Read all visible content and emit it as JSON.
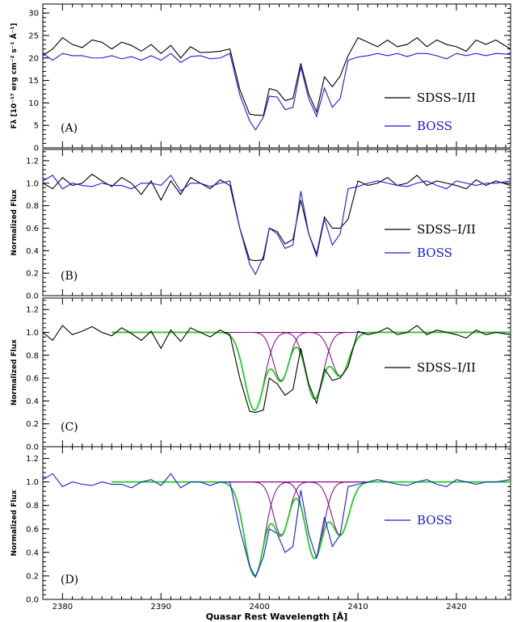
{
  "chart_data": [
    {
      "panel_label": "(A)",
      "type": "line",
      "ylabel": "Fλ [10⁻¹⁷ erg cm⁻² s⁻¹ Å⁻¹]",
      "ylim": [
        0,
        32
      ],
      "yticks": [
        0,
        5,
        10,
        15,
        20,
        25,
        30
      ],
      "ytick_labels": [
        "0",
        "5",
        "10",
        "15",
        "20",
        "25",
        "30"
      ],
      "xlim": [
        2378,
        2425.5
      ],
      "legend": [
        "SDSS–I/II",
        "BOSS"
      ],
      "colors": {
        "SDSS–I/II": "#000000",
        "BOSS": "#1a1adc"
      },
      "series": [
        {
          "name": "SDSS–I/II",
          "x": [
            2378,
            2379,
            2380,
            2381,
            2382,
            2383,
            2384,
            2385,
            2386,
            2387,
            2388,
            2389,
            2390,
            2391,
            2392,
            2393,
            2394,
            2395,
            2396,
            2397,
            2398,
            2399,
            2399.6,
            2400.4,
            2401,
            2401.8,
            2402.6,
            2403.4,
            2404.2,
            2405,
            2405.8,
            2406.6,
            2407.4,
            2408.2,
            2409,
            2410,
            2411,
            2412,
            2413,
            2414,
            2415,
            2416,
            2417,
            2418,
            2419,
            2420,
            2421,
            2422,
            2423,
            2424,
            2425.5
          ],
          "values": [
            20.5,
            22,
            24.5,
            23,
            22.3,
            24,
            23.5,
            22,
            23.5,
            22.8,
            21.5,
            23,
            21,
            22.8,
            20,
            22.5,
            21.2,
            21.3,
            21.5,
            22,
            13,
            7.5,
            7.3,
            7.2,
            13.2,
            12.7,
            10.5,
            11,
            18.8,
            12,
            8,
            15.8,
            13.6,
            16,
            20.5,
            24.5,
            23.5,
            22.5,
            24,
            22.5,
            23,
            24.5,
            22.5,
            24,
            23,
            22.5,
            21.5,
            24,
            23,
            24,
            22
          ]
        },
        {
          "name": "BOSS",
          "x": [
            2378,
            2379,
            2380,
            2381,
            2382,
            2383,
            2384,
            2385,
            2386,
            2387,
            2388,
            2389,
            2390,
            2391,
            2392,
            2393,
            2394,
            2395,
            2396,
            2397,
            2398,
            2399,
            2399.6,
            2400.4,
            2401,
            2401.8,
            2402.6,
            2403.4,
            2404.2,
            2405,
            2405.8,
            2406.6,
            2407.4,
            2408.2,
            2409,
            2410,
            2411,
            2412,
            2413,
            2414,
            2415,
            2416,
            2417,
            2418,
            2419,
            2420,
            2421,
            2422,
            2423,
            2424,
            2425.5
          ],
          "values": [
            21,
            19.5,
            21,
            20.5,
            20.5,
            20,
            20,
            20.5,
            19.8,
            20.3,
            19.5,
            20.5,
            19.5,
            21,
            19,
            20.3,
            20.5,
            19.8,
            20,
            21,
            11.8,
            6,
            4,
            6.8,
            11.5,
            11.3,
            8.5,
            9,
            18,
            11,
            7,
            13.3,
            9,
            11,
            19.5,
            20.2,
            20.5,
            21,
            20.5,
            21,
            20.3,
            21,
            21,
            20.5,
            19.8,
            21,
            20.5,
            21,
            20.5,
            21,
            20.8
          ]
        }
      ]
    },
    {
      "panel_label": "(B)",
      "type": "line",
      "ylabel": "Normalized Flux",
      "ylim": [
        0,
        1.3
      ],
      "yticks": [
        0,
        0.2,
        0.4,
        0.6,
        0.8,
        1.0,
        1.2
      ],
      "ytick_labels": [
        "0.0",
        "0.2",
        "0.4",
        "0.6",
        "0.8",
        "1.0",
        "1.2"
      ],
      "xlim": [
        2378,
        2425.5
      ],
      "legend": [
        "SDSS–I/II",
        "BOSS"
      ],
      "colors": {
        "SDSS–I/II": "#000000",
        "BOSS": "#1a1adc"
      },
      "series": [
        {
          "name": "SDSS–I/II",
          "x": [
            2378,
            2379,
            2380,
            2381,
            2382,
            2383,
            2384,
            2385,
            2386,
            2387,
            2388,
            2389,
            2390,
            2391,
            2392,
            2393,
            2394,
            2395,
            2396,
            2397,
            2398,
            2399,
            2399.6,
            2400.4,
            2401,
            2401.8,
            2402.6,
            2403.4,
            2404.2,
            2405,
            2405.8,
            2406.6,
            2407.4,
            2408.2,
            2409,
            2410,
            2411,
            2412,
            2413,
            2414,
            2415,
            2416,
            2417,
            2418,
            2419,
            2420,
            2421,
            2422,
            2423,
            2424,
            2425.5
          ],
          "values": [
            1.0,
            0.95,
            1.05,
            0.98,
            1.0,
            1.08,
            1.02,
            0.97,
            1.05,
            1.0,
            0.9,
            1.02,
            0.85,
            1.02,
            0.9,
            1.05,
            1.0,
            0.95,
            1.03,
            0.98,
            0.6,
            0.32,
            0.31,
            0.32,
            0.6,
            0.57,
            0.46,
            0.5,
            0.85,
            0.55,
            0.37,
            0.7,
            0.6,
            0.6,
            0.68,
            1.02,
            0.98,
            1.0,
            1.05,
            0.98,
            1.0,
            1.07,
            0.98,
            1.02,
            1.0,
            0.98,
            0.95,
            1.03,
            0.98,
            1.02,
            0.98
          ]
        },
        {
          "name": "BOSS",
          "x": [
            2378,
            2379,
            2380,
            2381,
            2382,
            2383,
            2384,
            2385,
            2386,
            2387,
            2388,
            2389,
            2390,
            2391,
            2392,
            2393,
            2394,
            2395,
            2396,
            2397,
            2398,
            2399,
            2399.6,
            2400.4,
            2401,
            2401.8,
            2402.6,
            2403.4,
            2404.2,
            2405,
            2405.8,
            2406.6,
            2407.4,
            2408.2,
            2409,
            2410,
            2411,
            2412,
            2413,
            2414,
            2415,
            2416,
            2417,
            2418,
            2419,
            2420,
            2421,
            2422,
            2423,
            2424,
            2425.5
          ],
          "values": [
            1.02,
            1.07,
            0.95,
            1.0,
            0.98,
            0.97,
            1.0,
            0.98,
            0.98,
            0.95,
            1.0,
            1.0,
            0.98,
            1.07,
            0.93,
            1.0,
            1.0,
            0.97,
            1.0,
            1.02,
            0.6,
            0.28,
            0.19,
            0.35,
            0.6,
            0.55,
            0.42,
            0.45,
            0.93,
            0.55,
            0.35,
            0.68,
            0.45,
            0.55,
            0.95,
            0.97,
            1.0,
            1.02,
            1.0,
            0.98,
            0.97,
            1.0,
            1.02,
            0.98,
            0.95,
            1.02,
            1.0,
            0.98,
            1.0,
            1.0,
            1.02
          ]
        }
      ]
    },
    {
      "panel_label": "(C)",
      "type": "line",
      "ylabel": "Normalized Flux",
      "ylim": [
        0,
        1.3
      ],
      "yticks": [
        0,
        0.2,
        0.4,
        0.6,
        0.8,
        1.0,
        1.2
      ],
      "ytick_labels": [
        "0.0",
        "0.2",
        "0.4",
        "0.6",
        "0.8",
        "1.0",
        "1.2"
      ],
      "xlim": [
        2378,
        2425.5
      ],
      "legend": [
        "SDSS–I/II"
      ],
      "colors": {
        "SDSS–I/II": "#000000",
        "fit": "#22cc22",
        "components": "#800080"
      },
      "series": [
        {
          "name": "SDSS–I/II",
          "x": [
            2378,
            2379,
            2380,
            2381,
            2382,
            2383,
            2384,
            2385,
            2386,
            2387,
            2388,
            2389,
            2390,
            2391,
            2392,
            2393,
            2394,
            2395,
            2396,
            2397,
            2398,
            2399,
            2399.6,
            2400.4,
            2401,
            2401.8,
            2402.6,
            2403.4,
            2404.2,
            2405,
            2405.8,
            2406.6,
            2407.4,
            2408.2,
            2409,
            2410,
            2411,
            2412,
            2413,
            2414,
            2415,
            2416,
            2417,
            2418,
            2419,
            2420,
            2421,
            2422,
            2423,
            2424,
            2425.5
          ],
          "values": [
            1.0,
            0.93,
            1.06,
            0.98,
            1.01,
            1.05,
            1.0,
            0.97,
            1.04,
            0.99,
            0.93,
            1.01,
            0.86,
            1.02,
            0.92,
            1.04,
            1.0,
            0.96,
            1.02,
            0.98,
            0.6,
            0.31,
            0.3,
            0.32,
            0.6,
            0.55,
            0.45,
            0.5,
            0.86,
            0.55,
            0.38,
            0.68,
            0.58,
            0.6,
            0.7,
            1.01,
            0.98,
            1.0,
            1.04,
            0.98,
            1.0,
            1.06,
            0.98,
            1.02,
            1.0,
            0.98,
            0.95,
            1.02,
            0.98,
            1.0,
            0.98
          ]
        }
      ],
      "fit_x_range": [
        2385,
        2425.5
      ],
      "components": [
        {
          "center": 2399.5,
          "depth": 0.68,
          "sigma": 1.0
        },
        {
          "center": 2402.2,
          "depth": 0.42,
          "sigma": 0.8
        },
        {
          "center": 2405.6,
          "depth": 0.58,
          "sigma": 0.9
        },
        {
          "center": 2408.2,
          "depth": 0.38,
          "sigma": 0.9
        }
      ]
    },
    {
      "panel_label": "(D)",
      "type": "line",
      "ylabel": "Normalized Flux",
      "ylim": [
        0,
        1.3
      ],
      "yticks": [
        0,
        0.2,
        0.4,
        0.6,
        0.8,
        1.0,
        1.2
      ],
      "ytick_labels": [
        "0.0",
        "0.2",
        "0.4",
        "0.6",
        "0.8",
        "1.0",
        "1.2"
      ],
      "xlim": [
        2378,
        2425.5
      ],
      "xticks": [
        2380,
        2390,
        2400,
        2410,
        2420
      ],
      "xtick_labels": [
        "2380",
        "2390",
        "2400",
        "2410",
        "2420"
      ],
      "xlabel": "Quasar Rest Wavelength [Å]",
      "legend": [
        "BOSS"
      ],
      "colors": {
        "BOSS": "#1a1adc",
        "fit": "#22cc22",
        "components": "#800080"
      },
      "series": [
        {
          "name": "BOSS",
          "x": [
            2378,
            2379,
            2380,
            2381,
            2382,
            2383,
            2384,
            2385,
            2386,
            2387,
            2388,
            2389,
            2390,
            2391,
            2392,
            2393,
            2394,
            2395,
            2396,
            2397,
            2398,
            2399,
            2399.6,
            2400.4,
            2401,
            2401.8,
            2402.6,
            2403.4,
            2404.2,
            2405,
            2405.8,
            2406.6,
            2407.4,
            2408.2,
            2409,
            2410,
            2411,
            2412,
            2413,
            2414,
            2415,
            2416,
            2417,
            2418,
            2419,
            2420,
            2421,
            2422,
            2423,
            2424,
            2425.5
          ],
          "values": [
            1.02,
            1.07,
            0.96,
            1.0,
            0.98,
            0.97,
            1.0,
            0.98,
            0.98,
            0.95,
            1.0,
            1.02,
            0.97,
            1.07,
            0.95,
            1.0,
            1.0,
            0.97,
            1.0,
            1.0,
            0.6,
            0.28,
            0.19,
            0.36,
            0.6,
            0.56,
            0.4,
            0.45,
            0.93,
            0.56,
            0.35,
            0.7,
            0.45,
            0.55,
            0.96,
            0.98,
            1.0,
            1.02,
            1.0,
            0.98,
            0.97,
            1.0,
            1.02,
            0.98,
            0.96,
            1.02,
            1.0,
            0.98,
            1.0,
            1.0,
            1.02
          ]
        }
      ],
      "fit_x_range": [
        2385,
        2425.5
      ],
      "components": [
        {
          "center": 2399.5,
          "depth": 0.8,
          "sigma": 1.0
        },
        {
          "center": 2402.2,
          "depth": 0.45,
          "sigma": 0.8
        },
        {
          "center": 2405.6,
          "depth": 0.65,
          "sigma": 0.9
        },
        {
          "center": 2408.2,
          "depth": 0.45,
          "sigma": 0.9
        }
      ]
    }
  ]
}
